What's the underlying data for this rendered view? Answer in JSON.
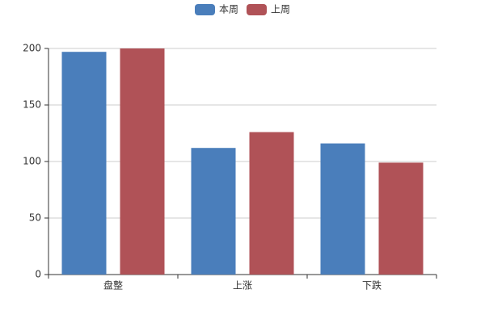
{
  "chart_data": {
    "type": "bar",
    "categories": [
      "盘整",
      "上涨",
      "下跌"
    ],
    "series": [
      {
        "name": "本周",
        "color": "#4a7ebb",
        "values": [
          197,
          112,
          116
        ]
      },
      {
        "name": "上周",
        "color": "#b05257",
        "values": [
          200,
          126,
          99
        ]
      }
    ],
    "ylim": [
      0,
      200
    ],
    "yticks": [
      0,
      50,
      100,
      150,
      200
    ],
    "grid": true,
    "legend": "top"
  }
}
